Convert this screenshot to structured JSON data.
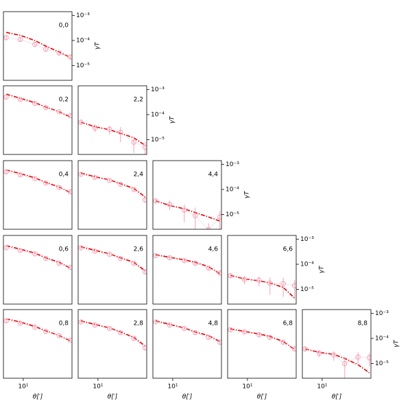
{
  "chart_data": [
    {
      "type": "line",
      "title": "0,0",
      "x": [
        5.5,
        9,
        15,
        22,
        35,
        52
      ],
      "xlim": [
        5,
        55
      ],
      "ylim": [
        2.6e-06,
        0.0014
      ],
      "log_y": true,
      "log_x": true,
      "yticks": [
        {
          "value": 0.001,
          "label": "10⁻³"
        },
        {
          "value": 0.0001,
          "label": "10⁻⁴"
        },
        {
          "value": 1e-05,
          "label": "10⁻⁵"
        }
      ],
      "ylabel": "γT",
      "series": [
        {
          "color": "#e00000",
          "style": "dashdot",
          "values": [
            0.00021,
            0.00016,
            0.0001,
            6e-05,
            3.5e-05,
            2.1e-05
          ]
        },
        {
          "color": "#f4a0b4",
          "style": "points",
          "values": [
            0.00013,
            0.00011,
            7e-05,
            4.5e-05,
            3.2e-05,
            2.2e-05
          ],
          "errors": [
            3e-05,
            2e-05,
            1.5e-05,
            1e-05,
            7e-06,
            5e-06
          ]
        }
      ]
    },
    {
      "type": "line",
      "title": "0,2",
      "x": [
        5.5,
        9,
        15,
        22,
        35,
        52
      ],
      "xlim": [
        5,
        55
      ],
      "ylim": [
        2.6e-06,
        0.0014
      ],
      "log_y": true,
      "log_x": true,
      "series": [
        {
          "color": "#e00000",
          "style": "dashdot",
          "values": [
            0.00065,
            0.00045,
            0.0003,
            0.0002,
            0.00013,
            8e-05
          ]
        },
        {
          "color": "#f4a0b4",
          "style": "points",
          "values": [
            0.0005,
            0.0004,
            0.00028,
            0.00019,
            0.00013,
            9e-05
          ],
          "errors": [
            7e-05,
            5e-05,
            3e-05,
            2e-05,
            1.5e-05,
            1e-05
          ]
        }
      ]
    },
    {
      "type": "line",
      "title": "2,2",
      "x": [
        5.5,
        9,
        15,
        22,
        35,
        52
      ],
      "xlim": [
        5,
        55
      ],
      "ylim": [
        2.6e-06,
        0.0014
      ],
      "log_y": true,
      "log_x": true,
      "yticks": [
        {
          "value": 0.001,
          "label": "10⁻³"
        },
        {
          "value": 0.0001,
          "label": "10⁻⁴"
        },
        {
          "value": 1e-05,
          "label": "10⁻⁵"
        }
      ],
      "ylabel": "γT",
      "series": [
        {
          "color": "#e00000",
          "style": "dashdot",
          "values": [
            5e-05,
            3.3e-05,
            2.5e-05,
            1.8e-05,
            1.2e-05,
            6e-06
          ]
        },
        {
          "color": "#f4a0b4",
          "style": "points",
          "values": [
            5e-05,
            3e-05,
            2.6e-05,
            2e-05,
            8e-06,
            5e-06
          ],
          "errors": [
            8e-06,
            1e-05,
            1e-05,
            1.2e-05,
            5e-06,
            3e-06
          ]
        }
      ]
    },
    {
      "type": "line",
      "title": "0,4",
      "x": [
        5.5,
        9,
        15,
        22,
        35,
        52
      ],
      "xlim": [
        5,
        55
      ],
      "ylim": [
        2.6e-06,
        0.0014
      ],
      "log_y": true,
      "log_x": true,
      "series": [
        {
          "color": "#e00000",
          "style": "dashdot",
          "values": [
            0.0006,
            0.00043,
            0.00029,
            0.00019,
            0.000125,
            7.5e-05
          ]
        },
        {
          "color": "#f4a0b4",
          "style": "points",
          "values": [
            0.0005,
            0.00038,
            0.00027,
            0.00018,
            0.00012,
            8e-05
          ],
          "errors": [
            7e-05,
            5e-05,
            3e-05,
            2e-05,
            1.5e-05,
            1e-05
          ]
        }
      ]
    },
    {
      "type": "line",
      "title": "2,4",
      "x": [
        5.5,
        9,
        15,
        22,
        35,
        52
      ],
      "xlim": [
        5,
        55
      ],
      "ylim": [
        2.6e-06,
        0.0014
      ],
      "log_y": true,
      "log_x": true,
      "series": [
        {
          "color": "#e00000",
          "style": "dashdot",
          "values": [
            0.00045,
            0.00032,
            0.00024,
            0.00017,
            0.00011,
            5e-05
          ]
        },
        {
          "color": "#f4a0b4",
          "style": "points",
          "values": [
            0.0004,
            0.0003,
            0.00023,
            0.00016,
            0.0001,
            3.8e-05
          ],
          "errors": [
            6e-05,
            4e-05,
            3e-05,
            2e-05,
            1.5e-05,
            8e-06
          ]
        }
      ]
    },
    {
      "type": "line",
      "title": "4,4",
      "x": [
        5.5,
        9,
        15,
        22,
        35,
        52
      ],
      "xlim": [
        5,
        55
      ],
      "ylim": [
        2.6e-06,
        0.0014
      ],
      "log_y": true,
      "log_x": true,
      "yticks": [
        {
          "value": 0.001,
          "label": "10⁻³"
        },
        {
          "value": 0.0001,
          "label": "10⁻⁴"
        },
        {
          "value": 1e-05,
          "label": "10⁻⁵"
        }
      ],
      "ylabel": "γT",
      "series": [
        {
          "color": "#e00000",
          "style": "dashdot",
          "values": [
            3.5e-05,
            2.3e-05,
            1.7e-05,
            1.2e-05,
            8e-06,
            5.5e-06
          ]
        },
        {
          "color": "#f4a0b4",
          "style": "points",
          "values": [
            3.5e-05,
            2.5e-05,
            1.5e-05,
            9e-06,
            2.5e-06,
            8e-06
          ],
          "errors": [
            8e-06,
            1e-05,
            1e-05,
            1e-05,
            2e-06,
            6e-06
          ]
        }
      ]
    },
    {
      "type": "line",
      "title": "0,6",
      "x": [
        5.5,
        9,
        15,
        22,
        35,
        52
      ],
      "xlim": [
        5,
        55
      ],
      "ylim": [
        2.6e-06,
        0.0014
      ],
      "log_y": true,
      "log_x": true,
      "series": [
        {
          "color": "#e00000",
          "style": "dashdot",
          "values": [
            0.00055,
            0.0004,
            0.00028,
            0.00018,
            0.00012,
            7e-05
          ]
        },
        {
          "color": "#f4a0b4",
          "style": "points",
          "values": [
            0.00045,
            0.00035,
            0.00026,
            0.00017,
            0.00011,
            7.5e-05
          ],
          "errors": [
            6e-05,
            4e-05,
            3e-05,
            2e-05,
            1.5e-05,
            1e-05
          ]
        }
      ]
    },
    {
      "type": "line",
      "title": "2,6",
      "x": [
        5.5,
        9,
        15,
        22,
        35,
        52
      ],
      "xlim": [
        5,
        55
      ],
      "ylim": [
        2.6e-06,
        0.0014
      ],
      "log_y": true,
      "log_x": true,
      "series": [
        {
          "color": "#e00000",
          "style": "dashdot",
          "values": [
            0.0005,
            0.00036,
            0.00026,
            0.00018,
            0.00012,
            5.5e-05
          ]
        },
        {
          "color": "#f4a0b4",
          "style": "points",
          "values": [
            0.00045,
            0.00033,
            0.00025,
            0.00017,
            0.00011,
            5e-05
          ],
          "errors": [
            6e-05,
            4e-05,
            3e-05,
            2e-05,
            1.5e-05,
            8e-06
          ]
        }
      ]
    },
    {
      "type": "line",
      "title": "4,6",
      "x": [
        5.5,
        9,
        15,
        22,
        35,
        52
      ],
      "xlim": [
        5,
        55
      ],
      "ylim": [
        2.6e-06,
        0.0014
      ],
      "log_y": true,
      "log_x": true,
      "series": [
        {
          "color": "#e00000",
          "style": "dashdot",
          "values": [
            0.00024,
            0.00019,
            0.00015,
            0.00012,
            8e-05,
            4.2e-05
          ]
        },
        {
          "color": "#f4a0b4",
          "style": "points",
          "values": [
            0.00022,
            0.00018,
            0.00014,
            0.00011,
            7e-05,
            4.5e-05
          ],
          "errors": [
            3e-05,
            2.5e-05,
            2e-05,
            1.5e-05,
            1e-05,
            8e-06
          ]
        }
      ]
    },
    {
      "type": "line",
      "title": "6,6",
      "x": [
        5.5,
        9,
        15,
        22,
        35,
        52
      ],
      "xlim": [
        5,
        55
      ],
      "ylim": [
        2.6e-06,
        0.0014
      ],
      "log_y": true,
      "log_x": true,
      "yticks": [
        {
          "value": 0.001,
          "label": "10⁻³"
        },
        {
          "value": 0.0001,
          "label": "10⁻⁴"
        },
        {
          "value": 1e-05,
          "label": "10⁻⁵"
        }
      ],
      "ylabel": "γT",
      "series": [
        {
          "color": "#e00000",
          "style": "dashdot",
          "values": [
            3.6e-05,
            2.6e-05,
            2.2e-05,
            1.8e-05,
            1.2e-05,
            4.5e-06
          ]
        },
        {
          "color": "#f4a0b4",
          "style": "points",
          "values": [
            3.5e-05,
            2.5e-05,
            2.3e-05,
            1.8e-05,
            1.7e-05,
            1.4e-05
          ],
          "errors": [
            8e-06,
            9e-06,
            1e-05,
            1.2e-05,
            1.2e-05,
            1e-05
          ]
        }
      ]
    },
    {
      "type": "line",
      "title": "0,8",
      "x": [
        5.5,
        9,
        15,
        22,
        35,
        52
      ],
      "xlim": [
        5,
        55
      ],
      "ylim": [
        2.6e-06,
        0.0014
      ],
      "log_y": true,
      "log_x": true,
      "xticks": [
        {
          "value": 10,
          "label": "10¹"
        }
      ],
      "xlabel": "θ[′]",
      "series": [
        {
          "color": "#e00000",
          "style": "dashdot",
          "values": [
            0.0006,
            0.00045,
            0.0003,
            0.0002,
            0.00013,
            8e-05
          ]
        },
        {
          "color": "#f4a0b4",
          "style": "points",
          "values": [
            0.0005,
            0.0004,
            0.00028,
            0.00019,
            0.00013,
            8.5e-05
          ],
          "errors": [
            7e-05,
            5e-05,
            3e-05,
            2e-05,
            1.5e-05,
            1e-05
          ]
        }
      ]
    },
    {
      "type": "line",
      "title": "2,8",
      "x": [
        5.5,
        9,
        15,
        22,
        35,
        52
      ],
      "xlim": [
        5,
        55
      ],
      "ylim": [
        2.6e-06,
        0.0014
      ],
      "log_y": true,
      "log_x": true,
      "xticks": [
        {
          "value": 10,
          "label": "10¹"
        }
      ],
      "xlabel": "θ[′]",
      "series": [
        {
          "color": "#e00000",
          "style": "dashdot",
          "values": [
            0.0005,
            0.00036,
            0.00026,
            0.00018,
            0.00011,
            5e-05
          ]
        },
        {
          "color": "#f4a0b4",
          "style": "points",
          "values": [
            0.00045,
            0.00034,
            0.00025,
            0.00017,
            0.0001,
            4.2e-05
          ],
          "errors": [
            6e-05,
            4e-05,
            3e-05,
            2e-05,
            1.5e-05,
            8e-06
          ]
        }
      ]
    },
    {
      "type": "line",
      "title": "4,8",
      "x": [
        5.5,
        9,
        15,
        22,
        35,
        52
      ],
      "xlim": [
        5,
        55
      ],
      "ylim": [
        2.6e-06,
        0.0014
      ],
      "log_y": true,
      "log_x": true,
      "xticks": [
        {
          "value": 10,
          "label": "10¹"
        }
      ],
      "xlabel": "θ[′]",
      "series": [
        {
          "color": "#e00000",
          "style": "dashdot",
          "values": [
            0.0005,
            0.00036,
            0.00026,
            0.00018,
            0.00013,
            7.5e-05
          ]
        },
        {
          "color": "#f4a0b4",
          "style": "points",
          "values": [
            0.00045,
            0.00034,
            0.00025,
            0.00017,
            0.00011,
            7e-05
          ],
          "errors": [
            6e-05,
            4e-05,
            3e-05,
            2e-05,
            1.5e-05,
            1e-05
          ]
        }
      ]
    },
    {
      "type": "line",
      "title": "6,8",
      "x": [
        5.5,
        9,
        15,
        22,
        35,
        52
      ],
      "xlim": [
        5,
        55
      ],
      "ylim": [
        2.6e-06,
        0.0014
      ],
      "log_y": true,
      "log_x": true,
      "xticks": [
        {
          "value": 10,
          "label": "10¹"
        }
      ],
      "xlabel": "θ[′]",
      "series": [
        {
          "color": "#e00000",
          "style": "dashdot",
          "values": [
            0.00024,
            0.00019,
            0.00015,
            0.00012,
            7.5e-05,
            3.6e-05
          ]
        },
        {
          "color": "#f4a0b4",
          "style": "points",
          "values": [
            0.00022,
            0.00018,
            0.00014,
            0.00011,
            7e-05,
            3.8e-05
          ],
          "errors": [
            3e-05,
            2.5e-05,
            2e-05,
            1.5e-05,
            1e-05,
            7e-06
          ]
        }
      ]
    },
    {
      "type": "line",
      "title": "8,8",
      "x": [
        5.5,
        9,
        15,
        22,
        35,
        52
      ],
      "xlim": [
        5,
        55
      ],
      "ylim": [
        2.6e-06,
        0.0014
      ],
      "log_y": true,
      "log_x": true,
      "yticks": [
        {
          "value": 0.001,
          "label": "10⁻³"
        },
        {
          "value": 0.0001,
          "label": "10⁻⁴"
        },
        {
          "value": 1e-05,
          "label": "10⁻⁵"
        }
      ],
      "ylabel": "γT",
      "xticks": [
        {
          "value": 10,
          "label": "10¹"
        }
      ],
      "xlabel": "θ[′]",
      "series": [
        {
          "color": "#e00000",
          "style": "dashdot",
          "values": [
            3.8e-05,
            2.8e-05,
            2.3e-05,
            1.6e-05,
            9e-06,
            4.3e-06
          ]
        },
        {
          "color": "#f4a0b4",
          "style": "points",
          "values": [
            3.8e-05,
            2.6e-05,
            2.2e-05,
            1e-05,
            1.8e-05,
            1.7e-05
          ],
          "errors": [
            8e-06,
            8e-06,
            9e-06,
            8e-06,
            1e-05,
            9e-06
          ]
        }
      ]
    }
  ]
}
